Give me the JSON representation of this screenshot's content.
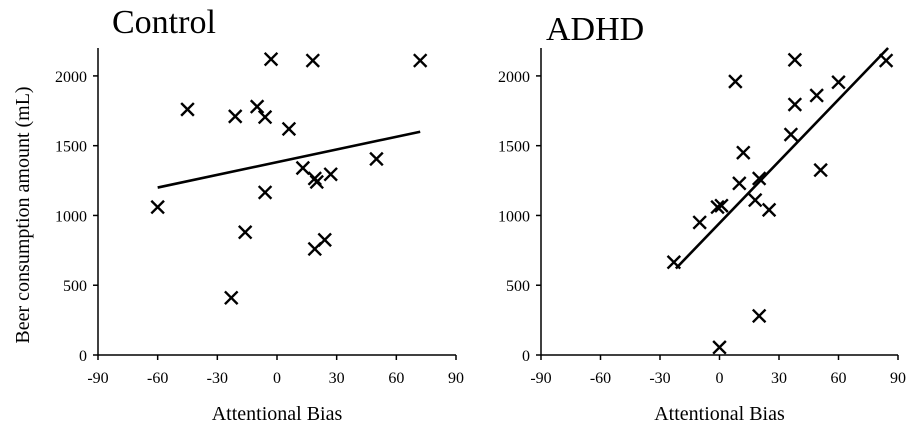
{
  "colors": {
    "marker": "#000000",
    "trendline": "#000000",
    "background": "#ffffff"
  },
  "shared_ylabel": "Beer consumption amount (mL)",
  "chart_data": [
    {
      "type": "scatter",
      "title": "Control",
      "xlabel": "Attentional Bias",
      "ylabel": "Beer consumption amount (mL)",
      "xlim": [
        -90,
        90
      ],
      "ylim": [
        0,
        2200
      ],
      "xticks": [
        -90,
        -60,
        -30,
        0,
        30,
        60,
        90
      ],
      "yticks": [
        0,
        500,
        1000,
        1500,
        2000
      ],
      "grid": false,
      "marker": "x",
      "points": [
        {
          "x": -60,
          "y": 1060
        },
        {
          "x": -45,
          "y": 1760
        },
        {
          "x": -23,
          "y": 410
        },
        {
          "x": -21,
          "y": 1710
        },
        {
          "x": -16,
          "y": 880
        },
        {
          "x": -10,
          "y": 1780
        },
        {
          "x": -6,
          "y": 1705
        },
        {
          "x": -6,
          "y": 1165
        },
        {
          "x": -3,
          "y": 2120
        },
        {
          "x": 6,
          "y": 1620
        },
        {
          "x": 13,
          "y": 1340
        },
        {
          "x": 18,
          "y": 2110
        },
        {
          "x": 19,
          "y": 1265
        },
        {
          "x": 19,
          "y": 760
        },
        {
          "x": 20,
          "y": 1240
        },
        {
          "x": 24,
          "y": 825
        },
        {
          "x": 27,
          "y": 1295
        },
        {
          "x": 50,
          "y": 1405
        },
        {
          "x": 72,
          "y": 2110
        }
      ],
      "trendline": {
        "x": [
          -60,
          72
        ],
        "y": [
          1200,
          1600
        ]
      }
    },
    {
      "type": "scatter",
      "title": "ADHD",
      "xlabel": "Attentional Bias",
      "ylabel": "",
      "xlim": [
        -90,
        90
      ],
      "ylim": [
        0,
        2200
      ],
      "xticks": [
        -90,
        -60,
        -30,
        0,
        30,
        60,
        90
      ],
      "yticks": [
        0,
        500,
        1000,
        1500,
        2000
      ],
      "grid": false,
      "marker": "x",
      "points": [
        {
          "x": -23,
          "y": 665
        },
        {
          "x": -10,
          "y": 950
        },
        {
          "x": -1,
          "y": 1060
        },
        {
          "x": 0,
          "y": 55
        },
        {
          "x": 1,
          "y": 1070
        },
        {
          "x": 8,
          "y": 1960
        },
        {
          "x": 10,
          "y": 1230
        },
        {
          "x": 12,
          "y": 1450
        },
        {
          "x": 18,
          "y": 1110
        },
        {
          "x": 20,
          "y": 280
        },
        {
          "x": 20,
          "y": 1265
        },
        {
          "x": 25,
          "y": 1040
        },
        {
          "x": 36,
          "y": 1580
        },
        {
          "x": 38,
          "y": 1795
        },
        {
          "x": 38,
          "y": 2115
        },
        {
          "x": 49,
          "y": 1860
        },
        {
          "x": 51,
          "y": 1325
        },
        {
          "x": 60,
          "y": 1955
        },
        {
          "x": 84,
          "y": 2110
        }
      ],
      "trendline": {
        "x": [
          -22,
          85
        ],
        "y": [
          620,
          2200
        ]
      }
    }
  ]
}
